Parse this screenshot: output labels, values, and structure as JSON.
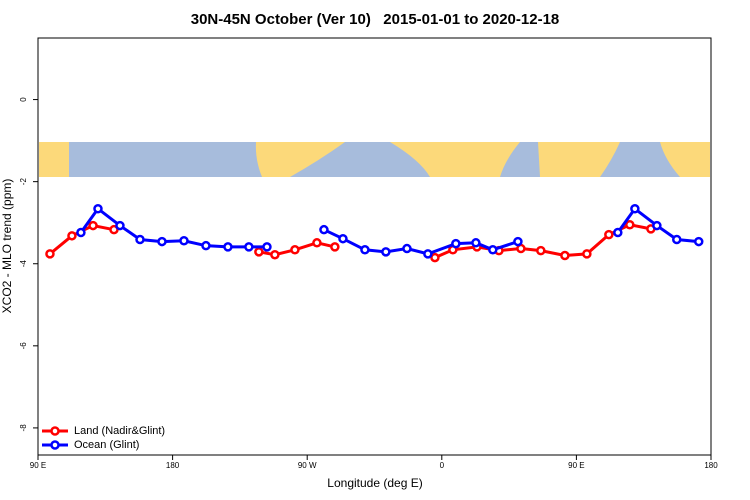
{
  "chart_data": {
    "type": "line",
    "title": "30N-45N October (Ver 10)   2015-01-01 to 2020-12-18",
    "xlabel": "Longitude (deg E)",
    "ylabel": "XCO2 - MLO trend (ppm)",
    "xlim": [
      90,
      540
    ],
    "ylim": [
      -8.66,
      1.5
    ],
    "xticks": [
      {
        "value": 90,
        "label": "90 E"
      },
      180,
      {
        "value": 270,
        "label": "90 W"
      },
      {
        "value": 360,
        "label": "0"
      },
      {
        "value": 450,
        "label": "90 E"
      },
      {
        "value": 540,
        "label": "180"
      }
    ],
    "yticks": [
      -8,
      -6,
      -4,
      -2,
      0
    ],
    "legend": "bottom-left",
    "series": [
      {
        "name": "Land (Nadir&Glint)",
        "color": "#ff0000",
        "x": [
          98,
          112.7,
          126.8,
          140.8,
          null,
          237.7,
          248.4,
          261.8,
          276.5,
          288.5,
          null,
          355.4,
          367.4,
          383.5,
          398.2,
          412.9,
          426.2,
          442.3,
          457,
          471.7,
          485.7,
          499.8
        ],
        "values": [
          -3.76,
          -3.32,
          -3.07,
          -3.17,
          null,
          -3.71,
          -3.78,
          -3.66,
          -3.49,
          -3.59,
          null,
          -3.85,
          -3.66,
          -3.59,
          -3.68,
          -3.63,
          -3.68,
          -3.8,
          -3.76,
          -3.29,
          -3.05,
          -3.15
        ]
      },
      {
        "name": "Ocean (Glint)",
        "color": "#0000ff",
        "x": [
          118.7,
          130.1,
          144.8,
          158.2,
          172.9,
          187.6,
          202.3,
          217,
          231,
          243.1,
          null,
          281.2,
          293.9,
          308.6,
          322.6,
          336.7,
          350.7,
          369.4,
          382.8,
          394.1,
          410.9,
          null,
          477.7,
          489.1,
          503.8,
          517.1,
          531.8
        ],
        "values": [
          -3.24,
          -2.66,
          -3.07,
          -3.41,
          -3.46,
          -3.44,
          -3.56,
          -3.59,
          -3.59,
          -3.59,
          null,
          -3.17,
          -3.39,
          -3.66,
          -3.71,
          -3.63,
          -3.76,
          -3.51,
          -3.49,
          -3.66,
          -3.46,
          null,
          -3.24,
          -2.66,
          -3.07,
          -3.41,
          -3.46
        ]
      }
    ]
  }
}
